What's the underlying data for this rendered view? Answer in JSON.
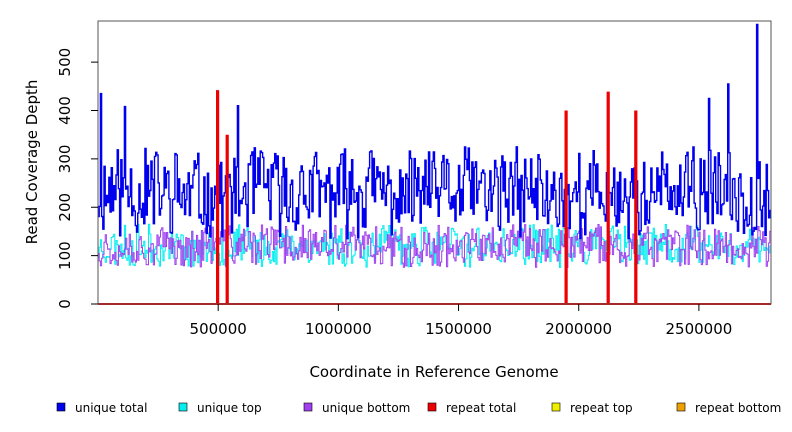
{
  "chart_data": {
    "type": "line",
    "xlabel": "Coordinate in Reference Genome",
    "ylabel": "Read Coverage Depth",
    "xlim": [
      0,
      2800000
    ],
    "ylim": [
      0,
      585
    ],
    "x_ticks": [
      500000,
      1000000,
      1500000,
      2000000,
      2500000
    ],
    "x_tick_labels": [
      "500000",
      "1000000",
      "1500000",
      "2000000",
      "2500000"
    ],
    "y_ticks": [
      0,
      100,
      200,
      300,
      400,
      500
    ],
    "y_tick_labels": [
      "0",
      "100",
      "200",
      "300",
      "400",
      "500"
    ],
    "legend_position": "bottom",
    "series": [
      {
        "name": "unique total",
        "color": "#0000ee",
        "baseline": 230,
        "amplitude": 95,
        "spikes": [
          {
            "x": 10000,
            "y": 435
          },
          {
            "x": 2740000,
            "y": 578
          },
          {
            "x": 2620000,
            "y": 455
          },
          {
            "x": 2540000,
            "y": 425
          },
          {
            "x": 580000,
            "y": 410
          },
          {
            "x": 110000,
            "y": 408
          }
        ],
        "dips": [
          {
            "x": 495000,
            "y": 0
          },
          {
            "x": 535000,
            "y": 0
          },
          {
            "x": 1945000,
            "y": 0
          },
          {
            "x": 2120000,
            "y": 0
          },
          {
            "x": 2235000,
            "y": 0
          }
        ]
      },
      {
        "name": "unique top",
        "color": "#00eeee",
        "baseline": 120,
        "amplitude": 45
      },
      {
        "name": "unique bottom",
        "color": "#a040ee",
        "baseline": 120,
        "amplitude": 45
      },
      {
        "name": "repeat total",
        "color": "#ee0000",
        "baseline": 0,
        "spikes": [
          {
            "x": 495000,
            "y": 440
          },
          {
            "x": 535000,
            "y": 348
          },
          {
            "x": 1945000,
            "y": 398
          },
          {
            "x": 2120000,
            "y": 437
          },
          {
            "x": 2235000,
            "y": 398
          }
        ]
      },
      {
        "name": "repeat top",
        "color": "#eeee00",
        "baseline": 0
      },
      {
        "name": "repeat bottom",
        "color": "#eea000",
        "baseline": 0
      }
    ]
  }
}
